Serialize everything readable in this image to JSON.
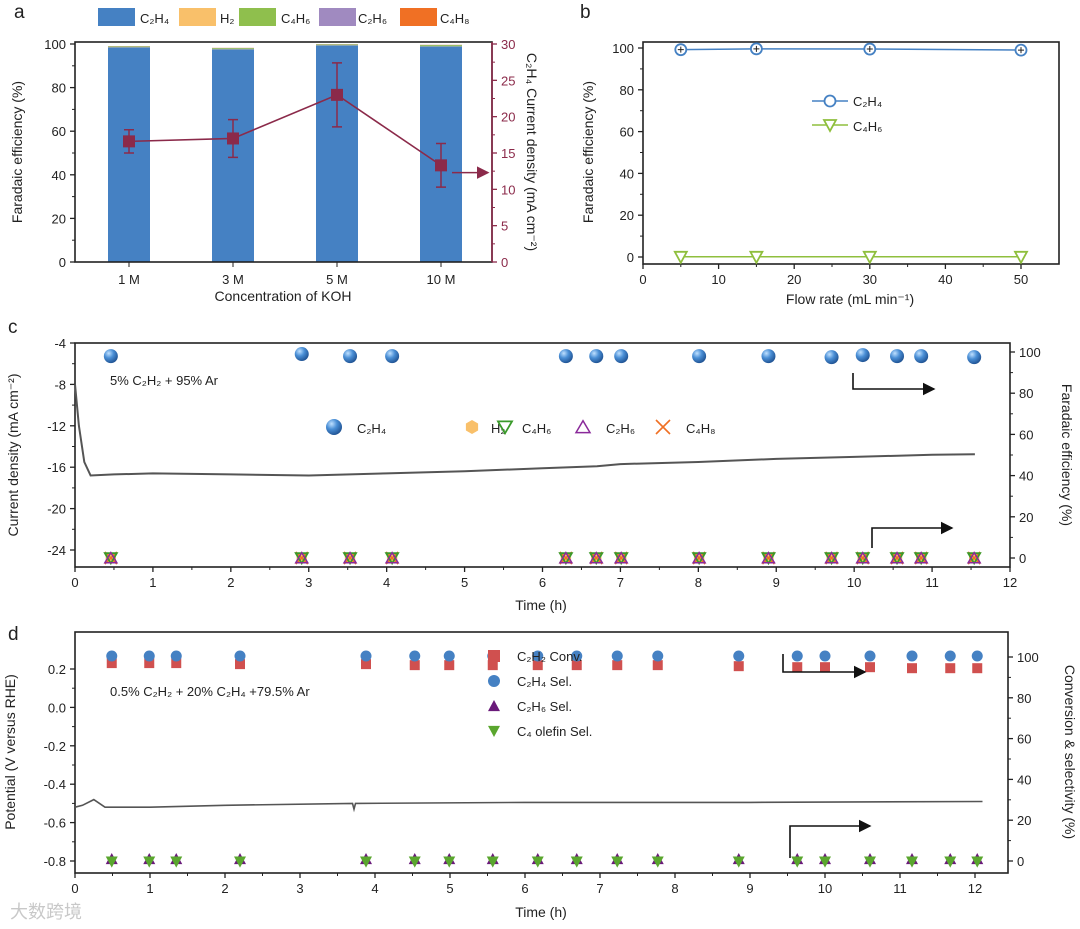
{
  "panel_labels": [
    "a",
    "b",
    "c",
    "d"
  ],
  "watermark": "大数跨境",
  "colors": {
    "C2H4": "#4581c3",
    "H2": "#f9c06a",
    "C4H6": "#8fbf4d",
    "C2H6": "#a08ac0",
    "C4H8": "#f07024",
    "current": "#8b2a4a",
    "conv": "#d0504f",
    "c2h6_sel": "#6a1a7a",
    "c4_sel": "#5aa62e",
    "trace": "#555555"
  },
  "chart_data": [
    {
      "id": "a",
      "type": "bar",
      "categories": [
        "1 M",
        "3 M",
        "5 M",
        "10 M"
      ],
      "xlabel": "Concentration of KOH",
      "ylabel": "Faradaic efficiency (%)",
      "y2label": "C₂H₄ Current density (mA cm⁻²)",
      "ylim": [
        0,
        100
      ],
      "y2lim": [
        0,
        30
      ],
      "yticks": [
        0,
        20,
        40,
        60,
        80,
        100
      ],
      "y2ticks": [
        0,
        5,
        10,
        15,
        20,
        25,
        30
      ],
      "series": [
        {
          "name": "C₂H₄",
          "key": "C2H4",
          "values": [
            98.5,
            97.6,
            99.4,
            98.9
          ]
        },
        {
          "name": "H₂",
          "key": "H2",
          "values": [
            0.1,
            0.1,
            0.1,
            0.1
          ]
        },
        {
          "name": "C₄H₆",
          "key": "C4H6",
          "values": [
            0.3,
            0.4,
            0.3,
            0.5
          ]
        },
        {
          "name": "C₂H₆",
          "key": "C2H6",
          "values": [
            0.1,
            0.1,
            0.1,
            0.1
          ]
        },
        {
          "name": "C₄H₈",
          "key": "C4H8",
          "values": [
            0.05,
            0.05,
            0.05,
            0.05
          ]
        }
      ],
      "line": {
        "name": "C₂H₄ current density",
        "values": [
          16.6,
          17.0,
          23.0,
          13.3
        ],
        "errors": [
          1.6,
          2.6,
          4.4,
          3.0
        ]
      }
    },
    {
      "id": "b",
      "type": "line",
      "xlabel": "Flow rate (mL min⁻¹)",
      "ylabel": "Faradaic efficiency (%)",
      "xlim": [
        0,
        55
      ],
      "ylim": [
        -3,
        103
      ],
      "xticks": [
        0,
        10,
        20,
        30,
        40,
        50
      ],
      "yticks": [
        0,
        20,
        40,
        60,
        80,
        100
      ],
      "x": [
        5,
        15,
        30,
        50
      ],
      "series": [
        {
          "name": "C₂H₄",
          "values": [
            99.2,
            99.6,
            99.5,
            99.0
          ]
        },
        {
          "name": "C₄H₆",
          "values": [
            0.1,
            0.1,
            0.1,
            0.1
          ]
        }
      ],
      "legend": "center"
    },
    {
      "id": "c",
      "type": "scatter",
      "annotation": "5% C₂H₂ + 95% Ar",
      "xlabel": "Time (h)",
      "ylabel": "Current density (mA cm⁻²)",
      "y2label": "Faradaic efficiency (%)",
      "xlim": [
        0,
        12
      ],
      "ylim": [
        -25.6,
        -4
      ],
      "y2lim": [
        -3,
        103
      ],
      "xticks": [
        0,
        1,
        2,
        3,
        4,
        5,
        6,
        7,
        8,
        9,
        10,
        11,
        12
      ],
      "yticks": [
        -4,
        -8,
        -12,
        -16,
        -20,
        -24
      ],
      "y2ticks": [
        0,
        20,
        40,
        60,
        80,
        100
      ],
      "time_points": [
        0.46,
        2.91,
        3.53,
        4.07,
        6.3,
        6.69,
        7.01,
        8.01,
        8.9,
        9.71,
        10.11,
        10.55,
        10.86,
        11.54
      ],
      "series": [
        {
          "name": "C₂H₄",
          "values": [
            98,
            99,
            98,
            98,
            98,
            98,
            98,
            98,
            98,
            97.5,
            98.5,
            98,
            98,
            97.5
          ]
        },
        {
          "name": "H₂",
          "values": [
            0,
            0,
            0,
            0,
            0,
            0,
            0,
            0,
            0,
            0,
            0,
            0,
            0,
            0
          ]
        },
        {
          "name": "C₄H₆",
          "values": [
            0,
            0,
            0,
            0,
            0,
            0,
            0,
            0,
            0,
            0,
            0,
            0,
            0,
            0
          ]
        },
        {
          "name": "C₂H₆",
          "values": [
            0,
            0,
            0,
            0,
            0,
            0,
            0,
            0,
            0,
            0,
            0,
            0,
            0,
            0
          ]
        },
        {
          "name": "C₄H₈",
          "values": [
            0,
            0,
            0,
            0,
            0,
            0,
            0,
            0,
            0,
            0,
            0,
            0,
            0,
            0
          ]
        }
      ],
      "trace": [
        [
          0,
          -8
        ],
        [
          0.05,
          -12
        ],
        [
          0.12,
          -15.5
        ],
        [
          0.2,
          -16.8
        ],
        [
          0.5,
          -16.7
        ],
        [
          1,
          -16.6
        ],
        [
          2,
          -16.7
        ],
        [
          3,
          -16.8
        ],
        [
          4,
          -16.6
        ],
        [
          5,
          -16.4
        ],
        [
          6,
          -16.1
        ],
        [
          6.7,
          -15.9
        ],
        [
          7,
          -15.7
        ],
        [
          8,
          -15.5
        ],
        [
          9,
          -15.2
        ],
        [
          10,
          -15.0
        ],
        [
          11,
          -14.8
        ],
        [
          11.55,
          -14.75
        ]
      ]
    },
    {
      "id": "d",
      "type": "scatter",
      "annotation": "0.5% C₂H₂ + 20% C₂H₄ +79.5% Ar",
      "xlabel": "Time (h)",
      "ylabel": "Potential (V versus RHE)",
      "y2label": "Conversion & selectivity (%)",
      "xlim": [
        0,
        12.44
      ],
      "ylim": [
        -0.86,
        0.39
      ],
      "y2lim": [
        -3,
        106
      ],
      "xticks": [
        0,
        1,
        2,
        3,
        4,
        5,
        6,
        7,
        8,
        9,
        10,
        11,
        12
      ],
      "yticks": [
        "0.2",
        "0.0",
        "-0.2",
        "-0.4",
        "-0.6",
        "-0.8"
      ],
      "y2ticks": [
        0,
        20,
        40,
        60,
        80,
        100
      ],
      "time_points": [
        0.49,
        0.99,
        1.35,
        2.2,
        3.88,
        4.53,
        4.99,
        5.57,
        6.17,
        6.69,
        7.23,
        7.77,
        8.85,
        9.63,
        10.0,
        10.6,
        11.16,
        11.67,
        12.03
      ],
      "series": [
        {
          "name": "C₂H₂ Conv.",
          "values": [
            97.5,
            97.5,
            97.5,
            97,
            97,
            96.5,
            96.5,
            96.5,
            96.5,
            96.5,
            96.5,
            96.5,
            96,
            95.5,
            95.5,
            95.5,
            95,
            95,
            95
          ]
        },
        {
          "name": "C₂H₄ Sel.",
          "values": [
            99,
            99,
            99,
            99,
            99,
            99,
            99,
            99,
            99,
            99,
            99,
            99,
            99,
            99,
            99,
            99,
            99,
            99,
            99
          ]
        },
        {
          "name": "C₂H₆ Sel.",
          "values": [
            0.5,
            0.5,
            0.5,
            0.5,
            0.5,
            0.5,
            0.5,
            0.5,
            0.5,
            0.5,
            0.5,
            0.5,
            0.5,
            0.5,
            0.5,
            0.5,
            0.5,
            0.5,
            0.5
          ]
        },
        {
          "name": "C₄ olefin Sel.",
          "values": [
            0.2,
            0.2,
            0.2,
            0.2,
            0.2,
            0.2,
            0.2,
            0.2,
            0.2,
            0.2,
            0.2,
            0.2,
            0.2,
            0.2,
            0.2,
            0.2,
            0.2,
            0.2,
            0.2
          ]
        }
      ],
      "trace": [
        [
          0,
          -0.52
        ],
        [
          0.1,
          -0.51
        ],
        [
          0.25,
          -0.48
        ],
        [
          0.4,
          -0.52
        ],
        [
          1,
          -0.52
        ],
        [
          2,
          -0.51
        ],
        [
          3.7,
          -0.5
        ],
        [
          3.72,
          -0.53
        ],
        [
          3.74,
          -0.5
        ],
        [
          6,
          -0.495
        ],
        [
          9,
          -0.495
        ],
        [
          12.1,
          -0.49
        ]
      ]
    }
  ]
}
